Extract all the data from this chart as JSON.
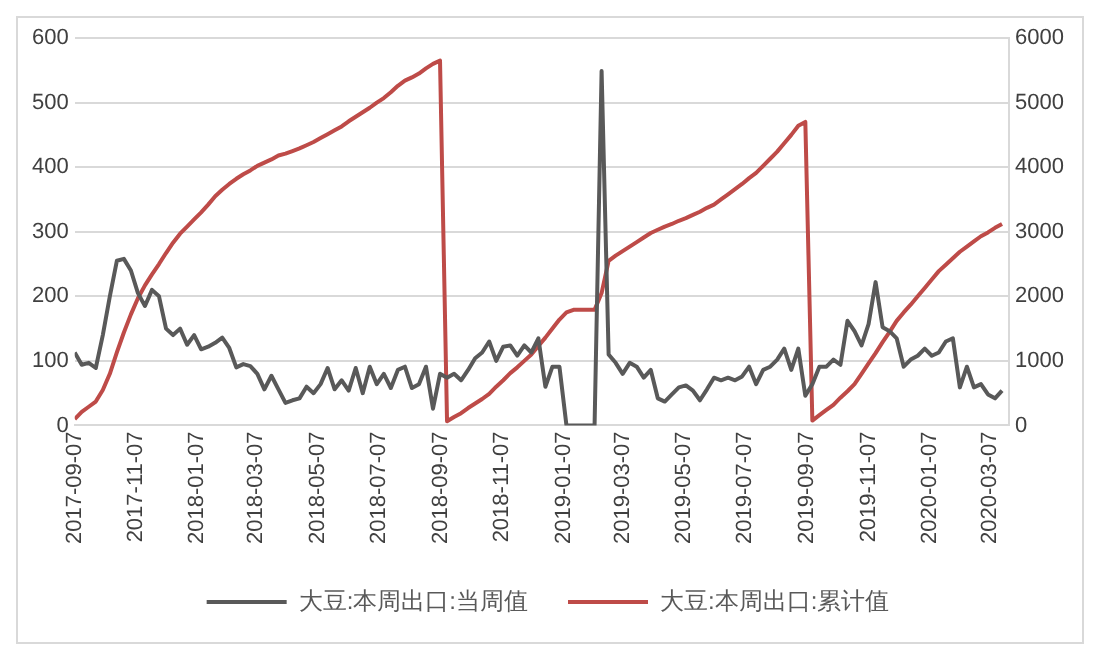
{
  "chart_data": {
    "type": "line",
    "x": [
      "2017-09-07",
      "2017-09-14",
      "2017-09-21",
      "2017-09-28",
      "2017-10-05",
      "2017-10-12",
      "2017-10-19",
      "2017-10-26",
      "2017-11-02",
      "2017-11-09",
      "2017-11-16",
      "2017-11-23",
      "2017-11-30",
      "2017-12-07",
      "2017-12-14",
      "2017-12-21",
      "2017-12-28",
      "2018-01-04",
      "2018-01-11",
      "2018-01-18",
      "2018-01-25",
      "2018-02-01",
      "2018-02-08",
      "2018-02-15",
      "2018-02-22",
      "2018-03-01",
      "2018-03-08",
      "2018-03-15",
      "2018-03-22",
      "2018-03-29",
      "2018-04-05",
      "2018-04-12",
      "2018-04-19",
      "2018-04-26",
      "2018-05-03",
      "2018-05-10",
      "2018-05-17",
      "2018-05-24",
      "2018-05-31",
      "2018-06-07",
      "2018-06-14",
      "2018-06-21",
      "2018-06-28",
      "2018-07-05",
      "2018-07-12",
      "2018-07-19",
      "2018-07-26",
      "2018-08-02",
      "2018-08-09",
      "2018-08-16",
      "2018-08-23",
      "2018-08-30",
      "2018-09-06",
      "2018-09-13",
      "2018-09-20",
      "2018-09-27",
      "2018-10-04",
      "2018-10-11",
      "2018-10-18",
      "2018-10-25",
      "2018-11-01",
      "2018-11-08",
      "2018-11-15",
      "2018-11-22",
      "2018-11-29",
      "2018-12-06",
      "2018-12-13",
      "2018-12-20",
      "2018-12-27",
      "2019-01-03",
      "2019-01-10",
      "2019-01-17",
      "2019-01-24",
      "2019-01-31",
      "2019-02-07",
      "2019-02-14",
      "2019-02-21",
      "2019-02-28",
      "2019-03-07",
      "2019-03-14",
      "2019-03-21",
      "2019-03-28",
      "2019-04-04",
      "2019-04-11",
      "2019-04-18",
      "2019-04-25",
      "2019-05-02",
      "2019-05-09",
      "2019-05-16",
      "2019-05-23",
      "2019-05-30",
      "2019-06-06",
      "2019-06-13",
      "2019-06-20",
      "2019-06-27",
      "2019-07-04",
      "2019-07-11",
      "2019-07-18",
      "2019-07-25",
      "2019-08-01",
      "2019-08-08",
      "2019-08-15",
      "2019-08-22",
      "2019-08-29",
      "2019-09-05",
      "2019-09-12",
      "2019-09-19",
      "2019-09-26",
      "2019-10-03",
      "2019-10-10",
      "2019-10-17",
      "2019-10-24",
      "2019-10-31",
      "2019-11-07",
      "2019-11-14",
      "2019-11-21",
      "2019-11-28",
      "2019-12-05",
      "2019-12-12",
      "2019-12-19",
      "2019-12-26",
      "2020-01-02",
      "2020-01-09",
      "2020-01-16",
      "2020-01-23",
      "2020-01-30",
      "2020-02-06",
      "2020-02-13",
      "2020-02-20",
      "2020-02-27",
      "2020-03-05",
      "2020-03-12",
      "2020-03-19"
    ],
    "series": [
      {
        "name": "大豆:本周出口:当周值",
        "color": "#595959",
        "values": [
          113,
          94,
          97,
          89,
          140,
          200,
          255,
          258,
          240,
          205,
          185,
          210,
          200,
          150,
          140,
          150,
          125,
          140,
          118,
          122,
          128,
          136,
          120,
          90,
          95,
          92,
          80,
          56,
          77,
          56,
          35,
          39,
          42,
          60,
          50,
          64,
          89,
          56,
          70,
          54,
          89,
          50,
          91,
          64,
          80,
          58,
          86,
          91,
          58,
          64,
          91,
          26,
          80,
          74,
          80,
          70,
          86,
          104,
          113,
          130,
          100,
          122,
          124,
          108,
          124,
          113,
          135,
          60,
          91,
          91,
          0,
          0,
          0,
          0,
          0,
          549,
          110,
          97,
          80,
          97,
          91,
          74,
          86,
          42,
          37,
          48,
          59,
          62,
          54,
          39,
          56,
          74,
          70,
          74,
          70,
          76,
          91,
          64,
          86,
          91,
          102,
          119,
          86,
          119,
          46,
          64,
          91,
          91,
          102,
          94,
          162,
          146,
          124,
          157,
          222,
          152,
          146,
          135,
          91,
          102,
          108,
          119,
          108,
          113,
          130,
          135,
          59,
          91,
          59,
          64,
          48,
          42,
          54
        ]
      },
      {
        "name": "大豆:本周出口:累计值",
        "color": "#be4b48",
        "axis": "y2",
        "values": [
          100,
          210,
          290,
          370,
          550,
          800,
          1130,
          1440,
          1720,
          1970,
          2170,
          2340,
          2500,
          2670,
          2830,
          2970,
          3080,
          3190,
          3300,
          3420,
          3550,
          3650,
          3740,
          3820,
          3890,
          3950,
          4020,
          4070,
          4120,
          4180,
          4210,
          4250,
          4290,
          4340,
          4390,
          4450,
          4510,
          4570,
          4630,
          4710,
          4780,
          4850,
          4920,
          5000,
          5070,
          5160,
          5260,
          5340,
          5390,
          5450,
          5530,
          5600,
          5650,
          65,
          130,
          190,
          270,
          340,
          410,
          490,
          600,
          700,
          810,
          900,
          1000,
          1100,
          1230,
          1360,
          1500,
          1640,
          1750,
          1790,
          1790,
          1790,
          1790,
          2050,
          2550,
          2630,
          2700,
          2770,
          2840,
          2910,
          2980,
          3030,
          3080,
          3120,
          3170,
          3210,
          3260,
          3310,
          3370,
          3420,
          3500,
          3580,
          3660,
          3740,
          3830,
          3910,
          4020,
          4130,
          4240,
          4370,
          4500,
          4640,
          4700,
          76,
          160,
          240,
          320,
          430,
          530,
          640,
          800,
          960,
          1120,
          1290,
          1450,
          1620,
          1750,
          1870,
          2000,
          2130,
          2260,
          2390,
          2490,
          2590,
          2690,
          2770,
          2850,
          2930,
          2990,
          3060,
          3120
        ]
      }
    ],
    "xlim": [
      "2017-09-07",
      "2020-03-26"
    ],
    "xticks": [
      "2017-09-07",
      "2017-11-07",
      "2018-01-07",
      "2018-03-07",
      "2018-05-07",
      "2018-07-07",
      "2018-09-07",
      "2018-11-07",
      "2019-01-07",
      "2019-03-07",
      "2019-05-07",
      "2019-07-07",
      "2019-09-07",
      "2019-11-07",
      "2020-01-07",
      "2020-03-07"
    ],
    "ylim": [
      0,
      600
    ],
    "yticks": [
      0,
      100,
      200,
      300,
      400,
      500,
      600
    ],
    "y2lim": [
      0,
      6000
    ],
    "y2ticks": [
      0,
      1000,
      2000,
      3000,
      4000,
      5000,
      6000
    ],
    "grid": "y",
    "legend": "bottom",
    "marker": "none",
    "line_style": "solid"
  }
}
